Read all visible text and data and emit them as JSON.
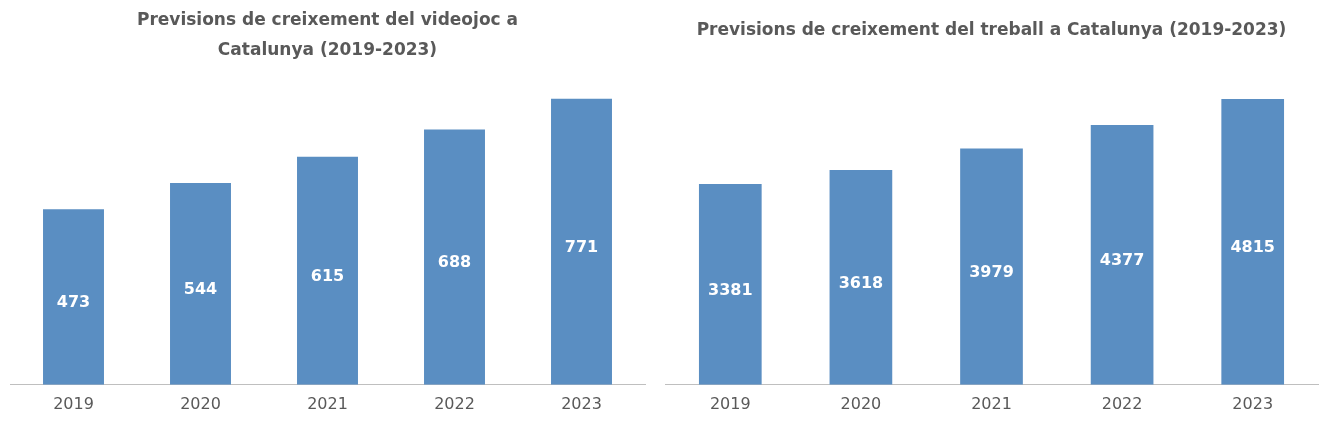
{
  "chart_data": [
    {
      "type": "bar",
      "title": "Previsions de creixement del videojoc a Catalunya (2019-2023)",
      "categories": [
        "2019",
        "2020",
        "2021",
        "2022",
        "2023"
      ],
      "values": [
        473,
        544,
        615,
        688,
        771
      ],
      "color": "#5a8ec2",
      "data_labels": true,
      "grid": false,
      "legend": false
    },
    {
      "type": "bar",
      "title": "Previsions de creixement del treball a Catalunya (2019-2023)",
      "categories": [
        "2019",
        "2020",
        "2021",
        "2022",
        "2023"
      ],
      "values": [
        3381,
        3618,
        3979,
        4377,
        4815
      ],
      "color": "#5a8ec2",
      "data_labels": true,
      "grid": false,
      "legend": false
    }
  ]
}
